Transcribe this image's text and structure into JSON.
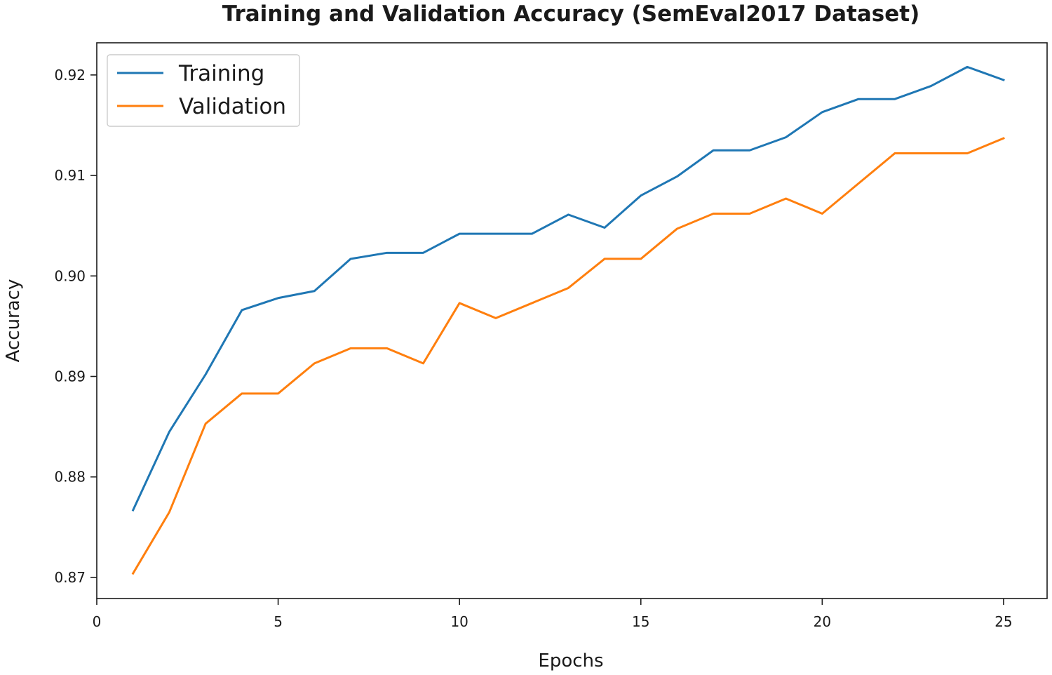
{
  "chart_data": {
    "type": "line",
    "title": "Training and Validation Accuracy (SemEval2017 Dataset)",
    "xlabel": "Epochs",
    "ylabel": "Accuracy",
    "xlim": [
      0,
      26.2
    ],
    "ylim": [
      0.8679,
      0.9232
    ],
    "xticks": [
      0,
      5,
      10,
      15,
      20,
      25
    ],
    "yticks": [
      0.87,
      0.88,
      0.89,
      0.9,
      0.91,
      0.92
    ],
    "ytick_labels": [
      "0.87",
      "0.88",
      "0.89",
      "0.90",
      "0.91",
      "0.92"
    ],
    "legend_position": "top-left",
    "grid": false,
    "x": [
      1,
      2,
      3,
      4,
      5,
      6,
      7,
      8,
      9,
      10,
      11,
      12,
      13,
      14,
      15,
      16,
      17,
      18,
      19,
      20,
      21,
      22,
      23,
      24,
      25
    ],
    "series": [
      {
        "name": "Training",
        "color": "#1f77b4",
        "values": [
          0.8767,
          0.8845,
          0.8902,
          0.8966,
          0.8978,
          0.8985,
          0.9017,
          0.9023,
          0.9023,
          0.9042,
          0.9042,
          0.9042,
          0.9061,
          0.9048,
          0.908,
          0.9099,
          0.9125,
          0.9125,
          0.9138,
          0.9163,
          0.9176,
          0.9176,
          0.9189,
          0.9208,
          0.9195
        ]
      },
      {
        "name": "Validation",
        "color": "#ff7f0e",
        "values": [
          0.8704,
          0.8765,
          0.8853,
          0.8883,
          0.8883,
          0.8913,
          0.8928,
          0.8928,
          0.8913,
          0.8973,
          0.8958,
          0.8973,
          0.8988,
          0.9017,
          0.9017,
          0.9047,
          0.9062,
          0.9062,
          0.9077,
          0.9062,
          0.9092,
          0.9122,
          0.9122,
          0.9122,
          0.9137
        ]
      }
    ]
  }
}
